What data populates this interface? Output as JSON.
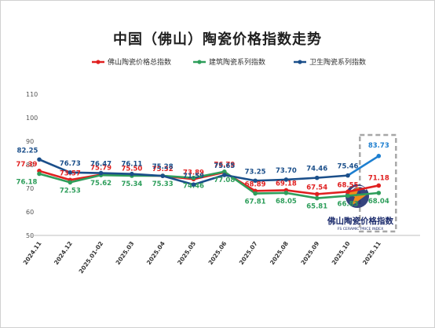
{
  "chart_data": {
    "type": "line",
    "title": "中国（佛山）陶瓷价格指数走势",
    "x": [
      "2024.11",
      "2024.12",
      "2025.01-02",
      "2025.03",
      "2025.04",
      "2025.05",
      "2025.06",
      "2025.07",
      "2025.08",
      "2025.09",
      "2025.10",
      "2025.11"
    ],
    "ylim": [
      50,
      110
    ],
    "yticks": [
      50,
      60,
      70,
      80,
      90,
      100,
      110
    ],
    "legend_position": "top",
    "grid": false,
    "series": [
      {
        "name": "佛山陶瓷价格总指数",
        "color": "#e02020",
        "values": [
          77.39,
          73.57,
          75.79,
          75.5,
          75.32,
          73.89,
          76.79,
          68.89,
          69.18,
          67.54,
          68.55,
          71.18
        ],
        "labels": [
          "77.39",
          "73.57",
          "75.79",
          "75.50",
          "75.32",
          "73.89",
          "76.79",
          "68.89",
          "69.18",
          "67.54",
          "68.55",
          "71.18"
        ]
      },
      {
        "name": "建筑陶瓷系列指数",
        "color": "#2e9e5b",
        "values": [
          76.18,
          72.53,
          75.62,
          75.34,
          75.33,
          74.46,
          77.08,
          67.81,
          68.05,
          65.81,
          66.83,
          68.04
        ],
        "labels": [
          "76.18",
          "72.53",
          "75.62",
          "75.34",
          "75.33",
          "74.46",
          "77.08",
          "67.81",
          "68.05",
          "65.81",
          "66.83",
          "68.04"
        ]
      },
      {
        "name": "卫生陶瓷系列指数",
        "color": "#1b4f8a",
        "highlight_color": "#1e7fd0",
        "values": [
          82.25,
          76.73,
          76.47,
          76.11,
          75.28,
          71.59,
          75.65,
          73.25,
          73.7,
          74.46,
          75.46,
          83.73
        ],
        "labels": [
          "82.25",
          "76.73",
          "76.47",
          "76.11",
          "75.28",
          "71.59",
          "75.65",
          "73.25",
          "73.70",
          "74.46",
          "75.46",
          "83.73"
        ]
      }
    ],
    "highlight_last_point": true
  },
  "watermark": {
    "title": "佛山陶瓷价格指数",
    "subtitle": "FS CERAMIC PRICE INDEX",
    "colors": [
      "#1a2a6c",
      "#f08a1c",
      "#ffffff"
    ]
  }
}
